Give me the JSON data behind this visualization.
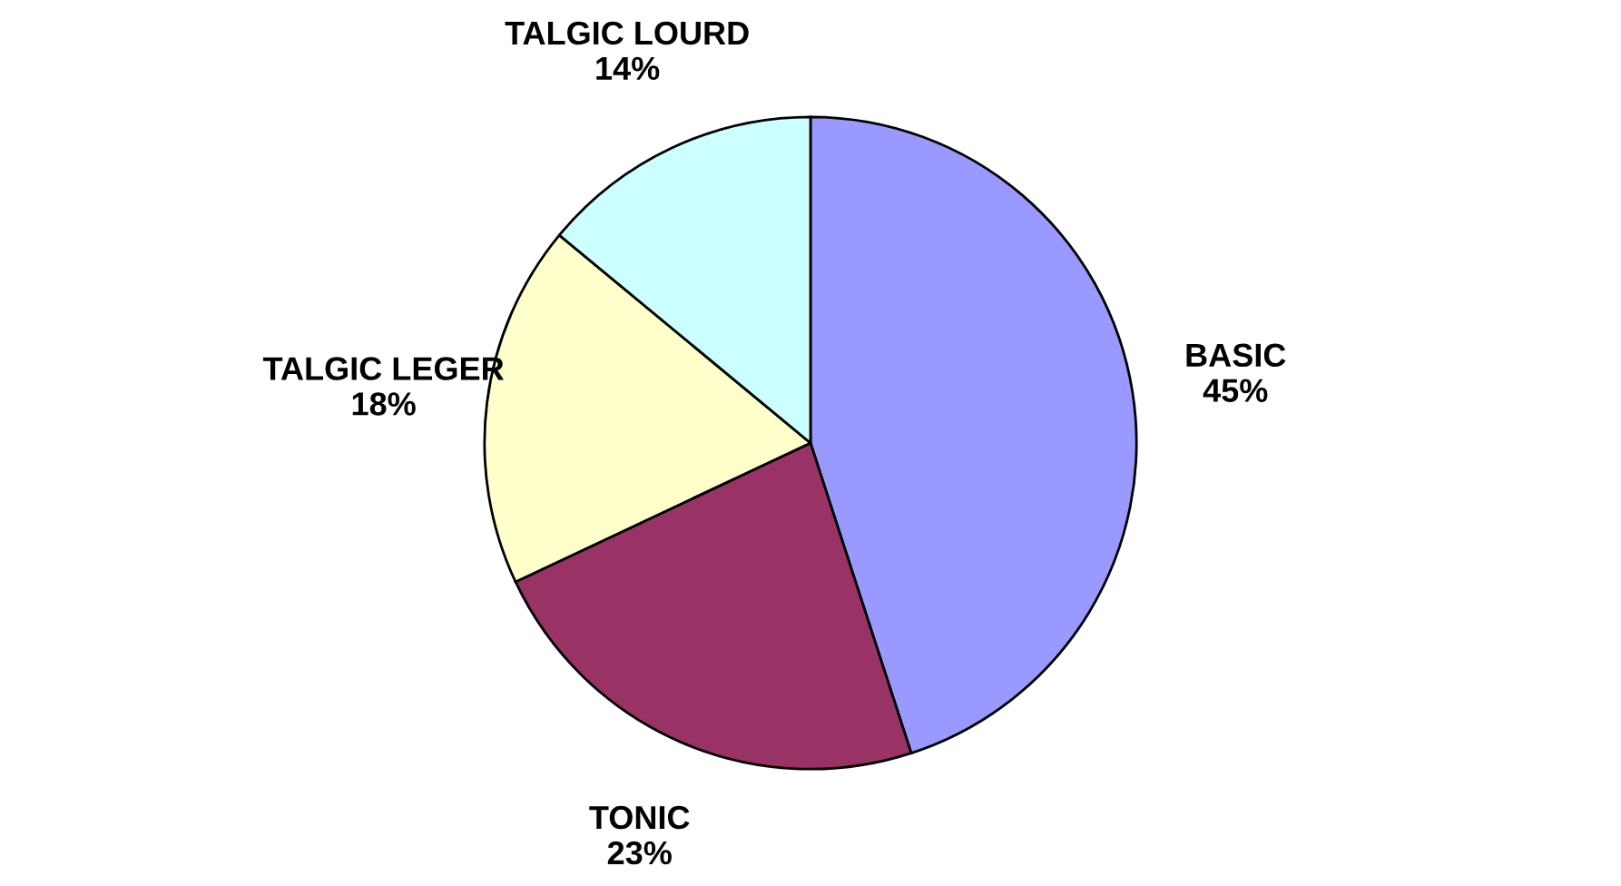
{
  "chart_data": {
    "type": "pie",
    "categories": [
      "BASIC",
      "TONIC",
      "TALGIC LEGER",
      "TALGIC LOURD"
    ],
    "values": [
      45,
      23,
      18,
      14
    ],
    "value_labels": [
      "45%",
      "23%",
      "18%",
      "14%"
    ],
    "colors": [
      "#9999ff",
      "#993366",
      "#ffffcc",
      "#ccffff"
    ]
  }
}
